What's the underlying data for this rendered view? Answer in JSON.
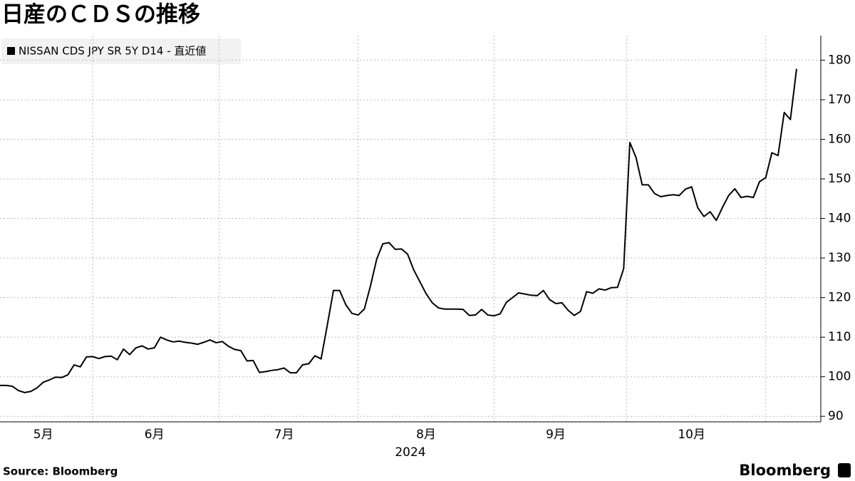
{
  "chart_data": {
    "type": "line",
    "title": "日産のＣＤＳの推移",
    "source": "Source:  Bloomberg",
    "logo": "Bloomberg",
    "year_label": "2024",
    "categories": [
      null,
      null,
      null,
      null,
      null,
      null,
      null,
      "5月",
      null,
      null,
      null,
      null,
      null,
      null,
      null,
      null,
      null,
      null,
      null,
      null,
      null,
      null,
      null,
      null,
      null,
      "6月",
      null,
      null,
      null,
      null,
      null,
      null,
      null,
      null,
      null,
      null,
      null,
      null,
      null,
      null,
      null,
      null,
      null,
      null,
      null,
      null,
      "7月",
      null,
      null,
      null,
      null,
      null,
      null,
      null,
      null,
      null,
      null,
      null,
      null,
      null,
      null,
      null,
      null,
      null,
      null,
      null,
      null,
      null,
      null,
      "8月",
      null,
      null,
      null,
      null,
      null,
      null,
      null,
      null,
      null,
      null,
      null,
      null,
      null,
      null,
      null,
      null,
      null,
      null,
      null,
      null,
      "9月",
      null,
      null,
      null,
      null,
      null,
      null,
      null,
      null,
      null,
      null,
      null,
      null,
      null,
      null,
      null,
      null,
      null,
      null,
      null,
      null,
      null,
      "10月",
      null,
      null,
      null,
      null,
      null,
      null,
      null,
      null,
      null,
      null,
      null,
      null,
      null,
      null,
      null,
      null,
      null
    ],
    "series": [
      {
        "name": "NISSAN CDS JPY SR 5Y D14 - 直近値",
        "color": "#000000",
        "values": [
          97.8,
          97.8,
          97.6,
          96.5,
          96.0,
          96.3,
          97.2,
          98.6,
          99.2,
          99.9,
          99.8,
          100.5,
          103.0,
          102.5,
          105.0,
          105.1,
          104.6,
          105.1,
          105.2,
          104.3,
          107.0,
          105.6,
          107.3,
          107.8,
          107.0,
          107.3,
          110.0,
          109.3,
          108.8,
          109.0,
          108.7,
          108.5,
          108.2,
          108.7,
          109.3,
          108.6,
          108.9,
          107.7,
          106.9,
          106.6,
          104.0,
          104.1,
          101.1,
          101.3,
          101.6,
          101.8,
          102.2,
          101.0,
          101.0,
          103.0,
          103.3,
          105.3,
          104.5,
          113.0,
          121.8,
          121.8,
          118.2,
          116.0,
          115.6,
          117.1,
          123.0,
          129.7,
          133.6,
          133.9,
          132.2,
          132.3,
          131.0,
          127.0,
          124.0,
          121.0,
          118.7,
          117.4,
          117.1,
          117.1,
          117.1,
          117.0,
          115.5,
          115.6,
          117.0,
          115.6,
          115.4,
          115.9,
          118.8,
          120.0,
          121.2,
          120.9,
          120.6,
          120.5,
          121.8,
          119.5,
          118.5,
          118.7,
          116.8,
          115.5,
          116.5,
          121.5,
          121.1,
          122.2,
          121.9,
          122.5,
          122.6,
          127.3,
          159.2,
          155.4,
          148.5,
          148.5,
          146.3,
          145.5,
          145.8,
          146.0,
          145.8,
          147.4,
          148.0,
          142.7,
          140.5,
          141.7,
          139.5,
          142.8,
          145.8,
          147.5,
          145.3,
          145.6,
          145.3,
          149.3,
          150.3,
          156.6,
          155.9,
          166.8,
          165.0,
          177.8
        ]
      }
    ],
    "ylim": [
      88.6,
      186.2
    ],
    "yticks": [
      90,
      100,
      110,
      120,
      130,
      140,
      150,
      160,
      170,
      180
    ],
    "grid": true,
    "y_axis_side": "right"
  }
}
